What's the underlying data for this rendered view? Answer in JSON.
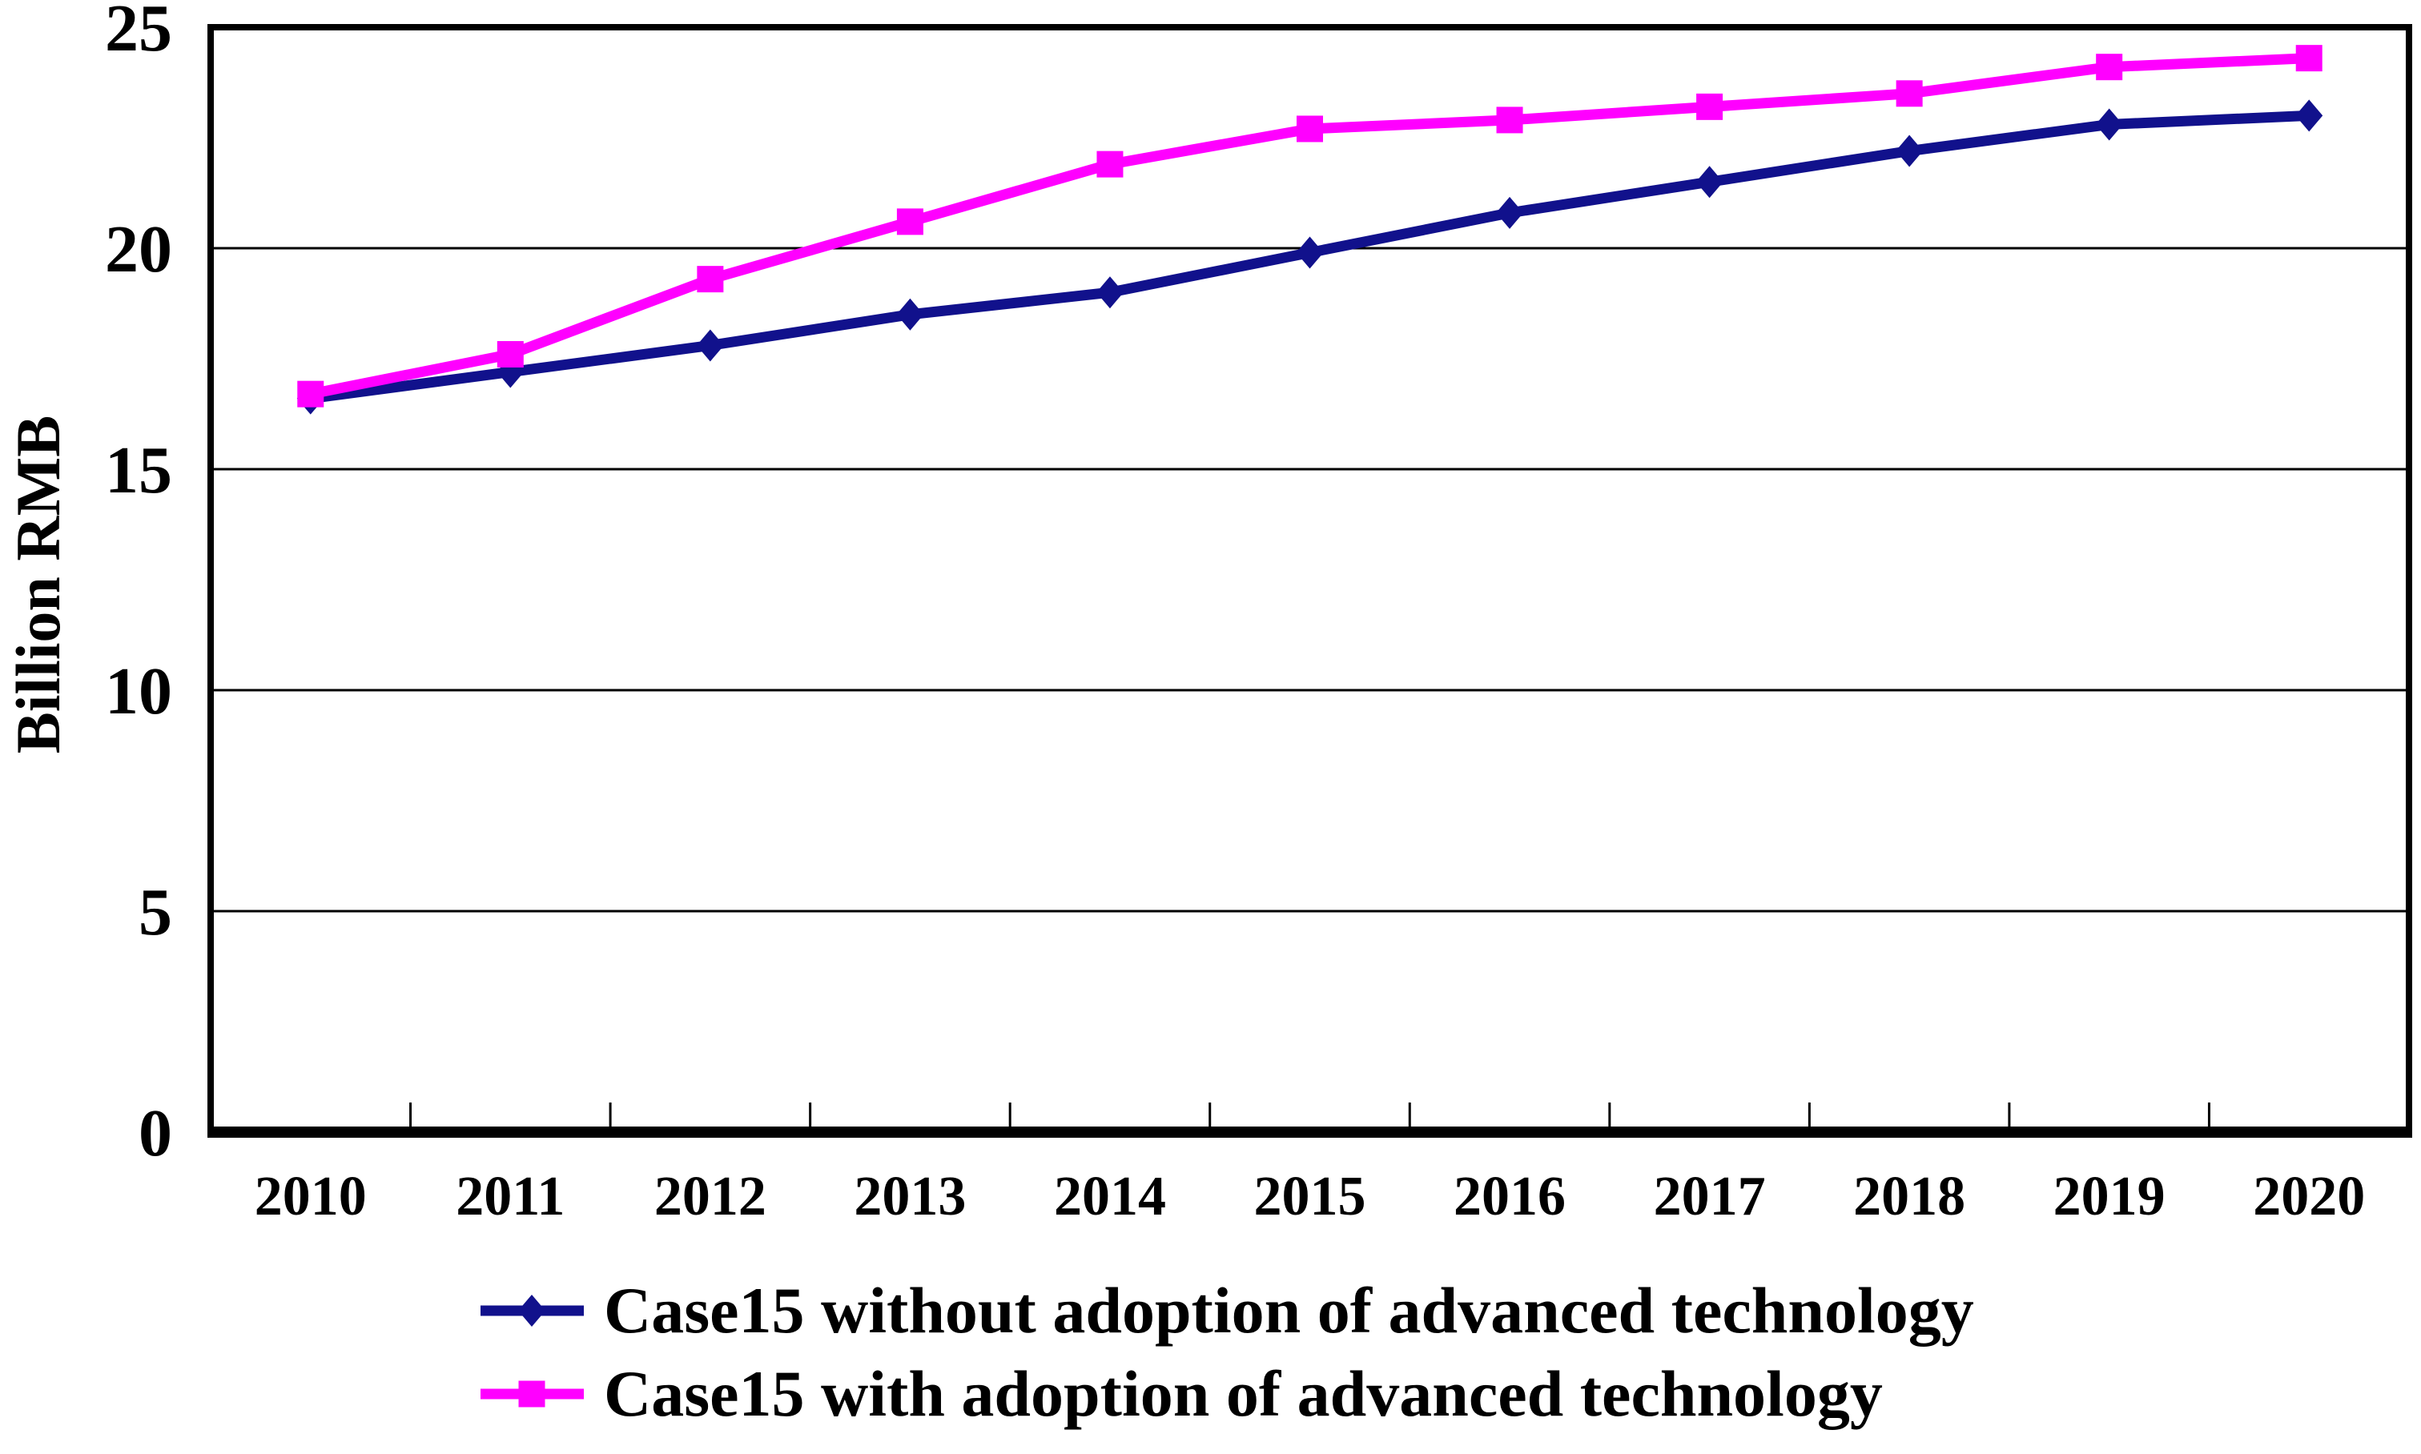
{
  "chart_data": {
    "type": "line",
    "title": "",
    "xlabel": "",
    "ylabel": "Billion RMB",
    "categories": [
      "2010",
      "2011",
      "2012",
      "2013",
      "2014",
      "2015",
      "2016",
      "2017",
      "2018",
      "2019",
      "2020"
    ],
    "ylim": [
      0,
      25
    ],
    "yticks": [
      0,
      5,
      10,
      15,
      20,
      25
    ],
    "grid": "horizontal",
    "legend_position": "bottom",
    "series": [
      {
        "name": "Case15 without adoption of advanced technology",
        "marker": "diamond",
        "color": "#11118c",
        "values": [
          16.6,
          17.2,
          17.8,
          18.5,
          19.0,
          19.9,
          20.8,
          21.5,
          22.2,
          22.8,
          23.0
        ]
      },
      {
        "name": "Case15 with adoption of advanced technology",
        "marker": "square",
        "color": "#ff00ff",
        "values": [
          16.7,
          17.6,
          19.3,
          20.6,
          21.9,
          22.7,
          22.9,
          23.2,
          23.5,
          24.1,
          24.3
        ]
      }
    ]
  },
  "colors": {
    "background": "#ffffff",
    "axis": "#000000",
    "gridline": "#000000",
    "text": "#000000",
    "series_without": "#11118c",
    "series_with": "#ff00ff"
  }
}
